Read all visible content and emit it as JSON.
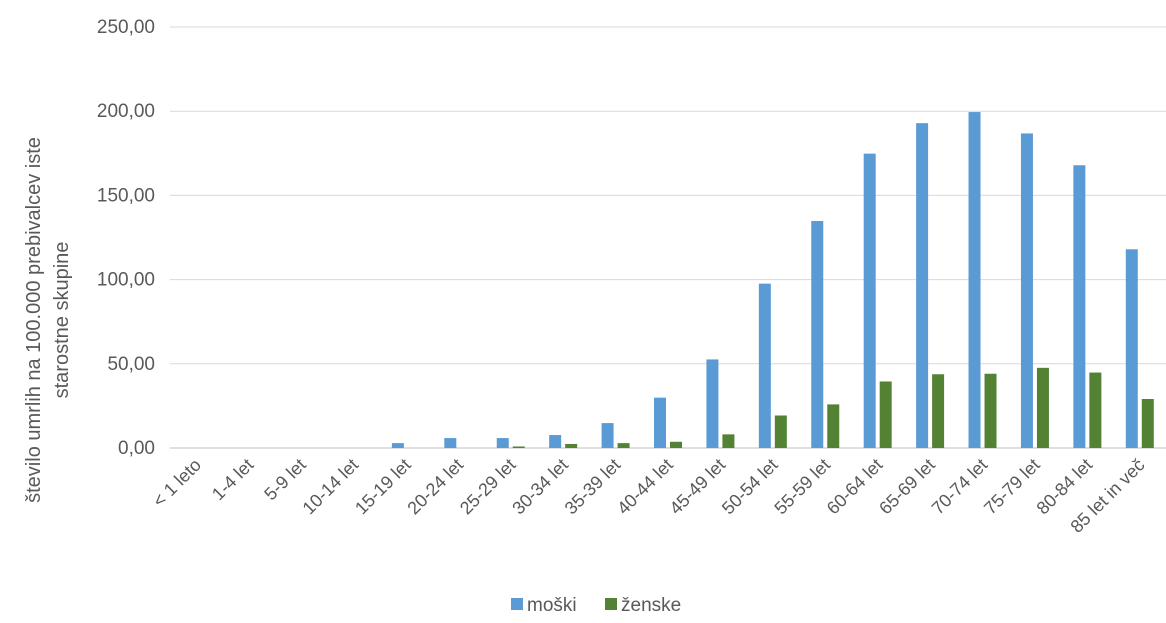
{
  "chart_data": {
    "type": "bar",
    "title": "",
    "xlabel": "",
    "ylabel_lines": [
      "število umrlih na 100.000 prebivalcev iste",
      "starostne skupine"
    ],
    "ylim": [
      0,
      250
    ],
    "ytick_values": [
      0,
      50,
      100,
      150,
      200,
      250
    ],
    "ytick_labels": [
      "0,00",
      "50,00",
      "100,00",
      "150,00",
      "200,00",
      "250,00"
    ],
    "categories": [
      "< 1 leto",
      "1-4 let",
      "5-9 let",
      "10-14 let",
      "15-19 let",
      "20-24 let",
      "25-29 let",
      "30-34 let",
      "35-39 let",
      "40-44 let",
      "45-49 let",
      "50-54 let",
      "55-59 let",
      "60-64 let",
      "65-69 let",
      "70-74 let",
      "75-79 let",
      "80-84 let",
      "85 let in več"
    ],
    "series": [
      {
        "name": "moški",
        "color": "#5b9bd5",
        "values": [
          0,
          0,
          0,
          0,
          2.9,
          5.9,
          5.9,
          7.7,
          14.8,
          29.9,
          52.6,
          97.6,
          134.8,
          174.8,
          192.9,
          199.5,
          186.8,
          167.9,
          118.0
        ]
      },
      {
        "name": "ženske",
        "color": "#548235",
        "values": [
          0,
          0,
          0,
          0,
          0,
          0,
          0.9,
          2.4,
          2.9,
          3.7,
          8.1,
          19.3,
          25.9,
          39.5,
          43.8,
          44.1,
          47.6,
          44.8,
          29.1
        ]
      }
    ],
    "grid": true,
    "legend_position": "bottom"
  }
}
